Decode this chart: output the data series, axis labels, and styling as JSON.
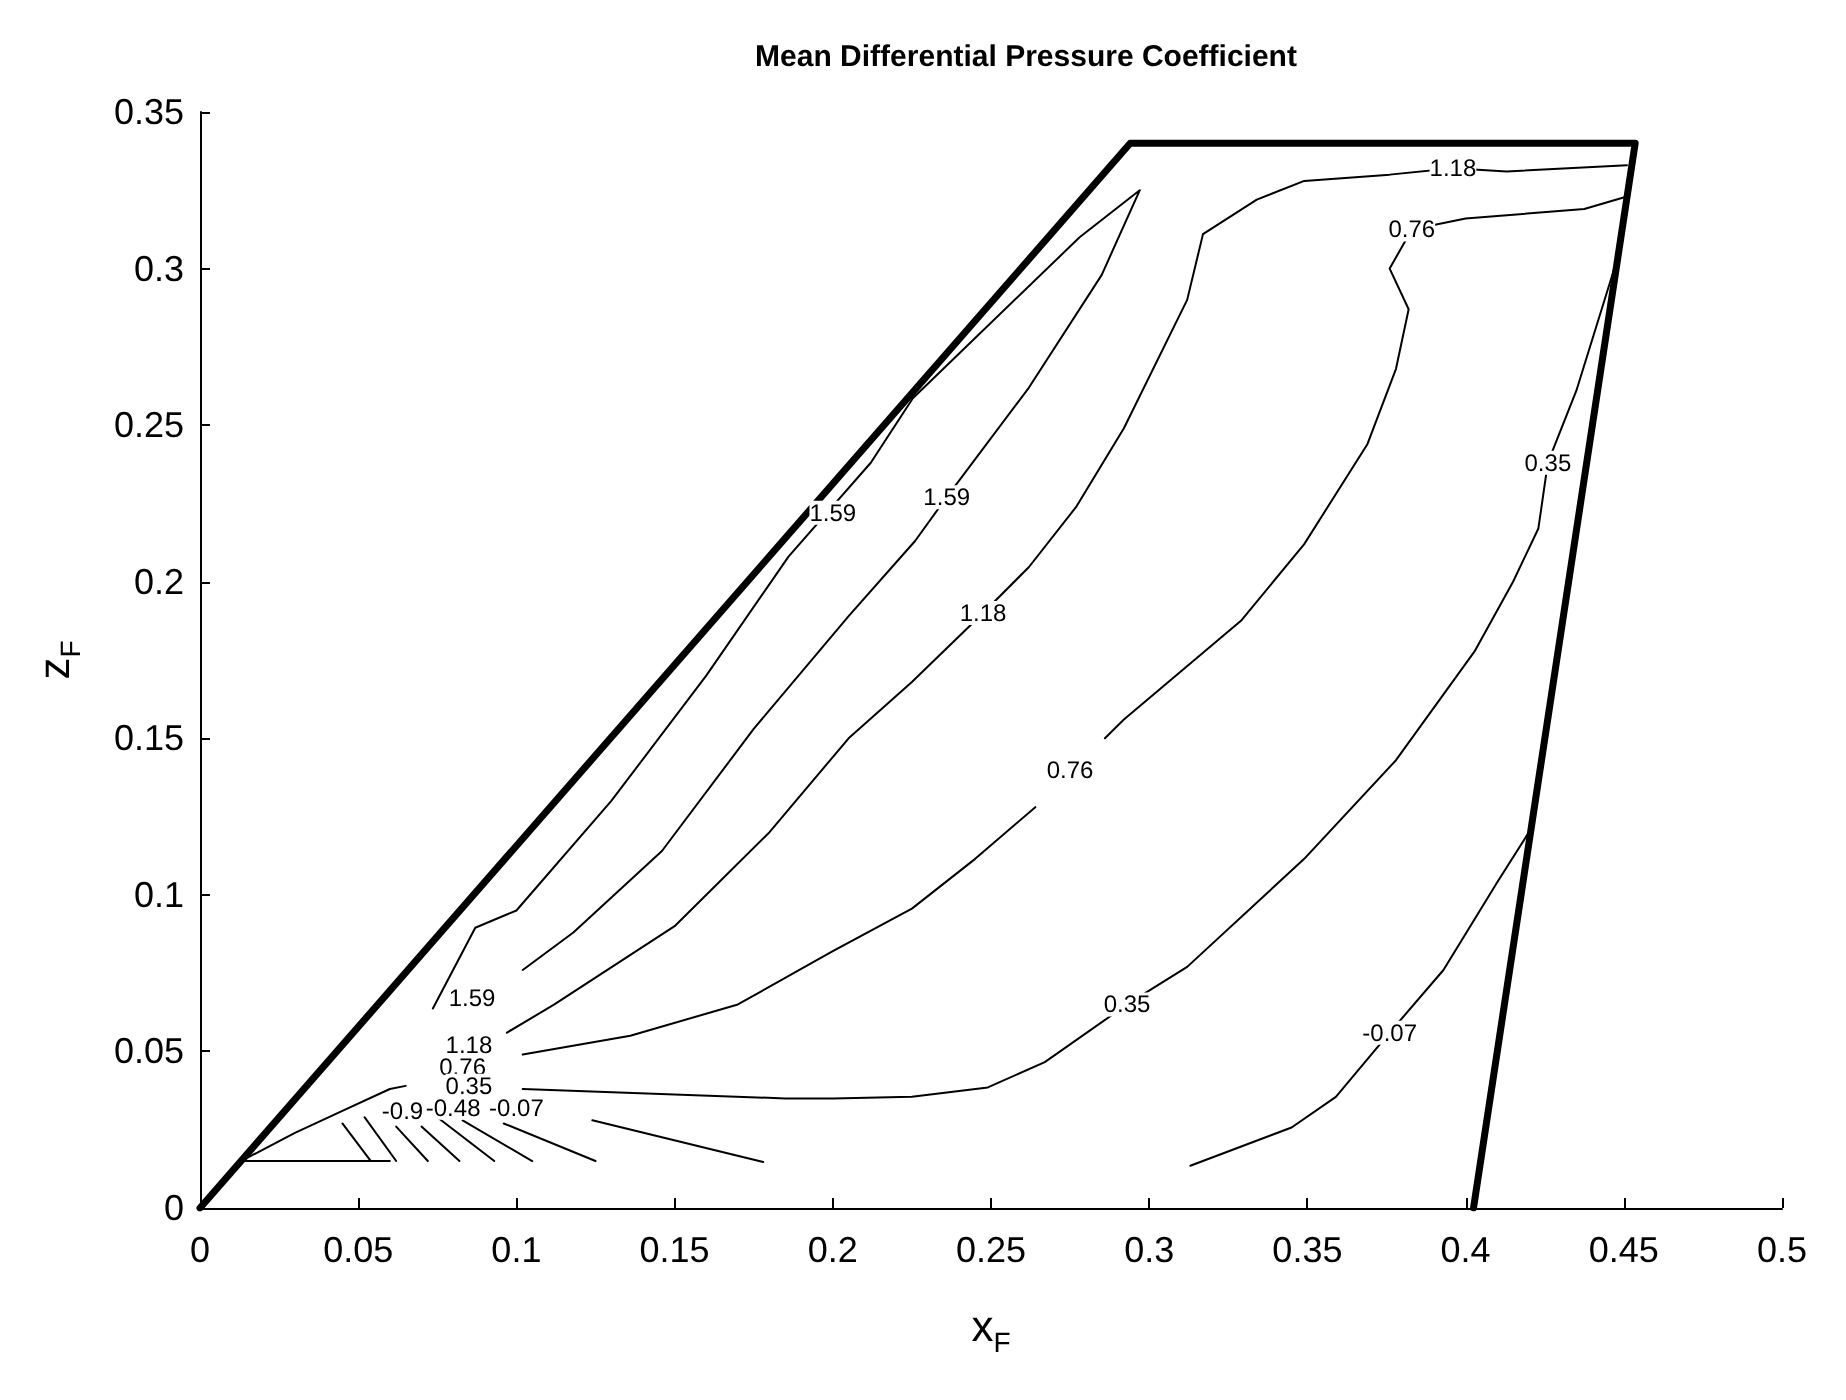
{
  "chart_data": {
    "type": "line",
    "title": "Mean Differential Pressure Coefficient",
    "xlabel": "x$_{F}$",
    "ylabel": "z$_{F}$",
    "xlim": [
      0,
      0.5
    ],
    "ylim": [
      0,
      0.35
    ],
    "xticks": [
      0,
      0.05,
      0.1,
      0.15,
      0.2,
      0.25,
      0.3,
      0.35,
      0.4,
      0.45,
      0.5
    ],
    "yticks": [
      0,
      0.05,
      0.1,
      0.15,
      0.2,
      0.25,
      0.3,
      0.35
    ],
    "grid": false,
    "marker": "none",
    "line_style": "solid",
    "series": [
      {
        "color": "#000000",
        "x": [
          0,
          0.294,
          0.4536,
          0.4025
        ],
        "values": [
          0,
          0.34,
          0.34,
          0
        ]
      },
      {
        "color": "#000000",
        "x": [
          0.102,
          0.118,
          0.146,
          0.175,
          0.205,
          0.226,
          0.236,
          0.262,
          0.285,
          0.297,
          0.278,
          0.2253,
          0.212,
          0.186,
          0.16,
          0.13,
          0.1,
          0.087,
          0.0736
        ],
        "values": [
          0.076,
          0.088,
          0.114,
          0.153,
          0.189,
          0.213,
          0.227,
          0.262,
          0.298,
          0.325,
          0.31,
          0.2586,
          0.238,
          0.208,
          0.17,
          0.13,
          0.095,
          0.0895,
          0.0637
        ]
      },
      {
        "color": "#000000",
        "x": [
          0.097,
          0.112,
          0.15,
          0.18,
          0.205,
          0.225,
          0.2475,
          0.262,
          0.277,
          0.292,
          0.312,
          0.317,
          0.334,
          0.349,
          0.376,
          0.396,
          0.413,
          0.451
        ],
        "values": [
          0.056,
          0.065,
          0.09,
          0.12,
          0.15,
          0.168,
          0.19,
          0.2047,
          0.224,
          0.249,
          0.29,
          0.311,
          0.322,
          0.328,
          0.33,
          0.332,
          0.331,
          0.333
        ]
      },
      {
        "color": "#000000",
        "x": [
          0.102,
          0.136,
          0.17,
          0.2,
          0.225,
          0.245,
          0.264,
          0.275,
          0.286,
          0.292,
          0.329,
          0.349,
          0.369,
          0.378,
          0.382,
          0.376,
          0.383,
          0.4,
          0.4375,
          0.451
        ],
        "values": [
          0.049,
          0.055,
          0.065,
          0.082,
          0.0956,
          0.1115,
          0.128,
          null,
          0.15,
          0.156,
          0.1875,
          0.212,
          0.244,
          0.268,
          0.287,
          0.3,
          0.3125,
          0.316,
          0.319,
          0.323
        ]
      },
      {
        "color": "#000000",
        "x": [
          0.102,
          0.185,
          0.2,
          0.225,
          0.249,
          0.267,
          0.293,
          0.312,
          0.349,
          0.378,
          0.403,
          0.415,
          0.423,
          0.426,
          0.435,
          0.447
        ],
        "values": [
          0.038,
          0.035,
          0.035,
          0.0355,
          0.0385,
          0.0466,
          0.065,
          0.077,
          0.1115,
          0.143,
          0.178,
          0.2,
          0.217,
          0.238,
          0.261,
          0.3
        ]
      },
      {
        "color": "#000000",
        "x": [
          0.313,
          0.345,
          0.359,
          0.376,
          0.393,
          0.41,
          0.42
        ],
        "values": [
          0.0135,
          0.0257,
          0.0355,
          0.056,
          0.076,
          0.104,
          0.12
        ]
      },
      {
        "color": "#000000",
        "x": [
          0.124,
          0.178
        ],
        "values": [
          0.028,
          0.0147
        ]
      },
      {
        "color": "#000000",
        "x": [
          0.096,
          0.125
        ],
        "values": [
          0.027,
          0.015
        ]
      },
      {
        "color": "#000000",
        "x": [
          0.083,
          0.105
        ],
        "values": [
          0.028,
          0.015
        ]
      },
      {
        "color": "#000000",
        "x": [
          0.075,
          0.093
        ],
        "values": [
          0.029,
          0.015
        ]
      },
      {
        "color": "#000000",
        "x": [
          0.07,
          0.082
        ],
        "values": [
          0.026,
          0.015
        ]
      },
      {
        "color": "#000000",
        "x": [
          0.062,
          0.072
        ],
        "values": [
          0.026,
          0.015
        ]
      },
      {
        "color": "#000000",
        "x": [
          0.052,
          0.062
        ],
        "values": [
          0.029,
          0.015
        ]
      },
      {
        "color": "#000000",
        "x": [
          0.045,
          0.054
        ],
        "values": [
          0.027,
          0.015
        ]
      },
      {
        "color": "#000000",
        "x": [
          0.013,
          0.03,
          0.045,
          0.06,
          0.065
        ],
        "values": [
          0.015,
          0.024,
          0.031,
          0.038,
          0.039
        ]
      },
      {
        "color": "#000000",
        "x": [
          0.013,
          0.06
        ],
        "values": [
          0.015,
          0.015
        ]
      }
    ],
    "annotations": [
      {
        "text": "1.59",
        "x": 0.2,
        "y": 0.222
      },
      {
        "text": "1.59",
        "x": 0.236,
        "y": 0.227
      },
      {
        "text": "1.59",
        "x": 0.086,
        "y": 0.067
      },
      {
        "text": "1.18",
        "x": 0.2475,
        "y": 0.19
      },
      {
        "text": "1.18",
        "x": 0.396,
        "y": 0.332
      },
      {
        "text": "0.76",
        "x": 0.275,
        "y": 0.14
      },
      {
        "text": "0.76",
        "x": 0.383,
        "y": 0.3125
      },
      {
        "text": "0.35",
        "x": 0.293,
        "y": 0.065
      },
      {
        "text": "0.35",
        "x": 0.426,
        "y": 0.238
      },
      {
        "text": "-0.07",
        "x": 0.376,
        "y": 0.056
      },
      {
        "text": "1.18",
        "x": 0.085,
        "y": 0.052
      },
      {
        "text": "0.76",
        "x": 0.083,
        "y": 0.045
      },
      {
        "text": "0.35",
        "x": 0.085,
        "y": 0.039
      },
      {
        "text": "-0.07",
        "x": 0.1,
        "y": 0.032
      },
      {
        "text": "-0.48",
        "x": 0.08,
        "y": 0.032
      },
      {
        "text": "-0.9",
        "x": 0.064,
        "y": 0.031
      }
    ]
  }
}
